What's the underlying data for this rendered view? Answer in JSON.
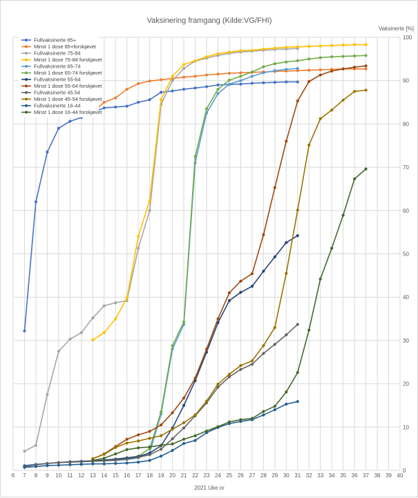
{
  "chart_data": {
    "type": "line",
    "title": "Vaksinering framgang (Kilde:VG/FHI)",
    "xlabel": "2021 Uke nr",
    "ylabel": "Vaksinerte [%]",
    "xlim": [
      6,
      40
    ],
    "ylim": [
      0,
      100
    ],
    "x_ticks": [
      6,
      7,
      8,
      9,
      10,
      11,
      12,
      13,
      14,
      15,
      16,
      17,
      18,
      19,
      20,
      21,
      22,
      23,
      24,
      25,
      26,
      27,
      28,
      29,
      30,
      31,
      32,
      33,
      34,
      35,
      36,
      37,
      38,
      39,
      40
    ],
    "y_ticks": [
      0,
      10,
      20,
      30,
      40,
      50,
      60,
      70,
      80,
      90,
      100
    ],
    "grid": true,
    "legend_position": "top-left",
    "series": [
      {
        "name": "Fullvaksinerte 85+",
        "color": "#4472c4",
        "x": [
          7,
          8,
          9,
          10,
          11,
          12,
          13,
          14,
          15,
          16,
          17,
          18,
          19,
          20,
          21,
          22,
          23,
          24,
          25,
          26,
          27,
          28,
          29,
          30,
          31
        ],
        "y": [
          32.2,
          62.0,
          73.5,
          79.0,
          80.6,
          81.5,
          82.7,
          83.7,
          83.9,
          84.1,
          85.0,
          85.6,
          87.3,
          87.6,
          88.0,
          88.3,
          88.6,
          89.0,
          89.1,
          89.2,
          89.4,
          89.5,
          89.6,
          89.7,
          89.7
        ]
      },
      {
        "name": "Minst 1 dose 85+forskjøvet",
        "color": "#ed7d31",
        "x": [
          13,
          14,
          15,
          16,
          17,
          18,
          19,
          20,
          21,
          22,
          23,
          24,
          25,
          26,
          27,
          28,
          29,
          30,
          31,
          32,
          33,
          34,
          35,
          36,
          37
        ],
        "y": [
          82.7,
          85.0,
          86.0,
          88.0,
          89.3,
          89.9,
          90.2,
          90.5,
          90.8,
          91.0,
          91.3,
          91.5,
          91.7,
          91.8,
          91.9,
          92.0,
          92.1,
          92.2,
          92.3,
          92.4,
          92.5,
          92.6,
          92.7,
          92.7,
          92.7
        ]
      },
      {
        "name": "Fullvaksinerte 75-84",
        "color": "#a5a5a5",
        "x": [
          7,
          8,
          9,
          10,
          11,
          12,
          13,
          14,
          15,
          16,
          17,
          18,
          19,
          20,
          21,
          22,
          23,
          24,
          25,
          26,
          27,
          28,
          29,
          30,
          31
        ],
        "y": [
          4.4,
          5.8,
          17.5,
          27.5,
          30.3,
          31.8,
          35.2,
          38.0,
          38.7,
          39.2,
          51.3,
          60.0,
          84.5,
          90.0,
          92.8,
          94.5,
          95.2,
          95.8,
          96.3,
          96.6,
          96.8,
          97.0,
          97.2,
          97.3,
          97.4
        ]
      },
      {
        "name": "Minst 1 dose 75-84 forskjøvet",
        "color": "#ffc000",
        "x": [
          13,
          14,
          15,
          16,
          17,
          18,
          19,
          20,
          21,
          22,
          23,
          24,
          25,
          26,
          27,
          28,
          29,
          30,
          31,
          32,
          33,
          34,
          35,
          36,
          37
        ],
        "y": [
          30.1,
          31.8,
          35.0,
          39.8,
          54.0,
          62.3,
          85.6,
          91.0,
          93.7,
          94.6,
          95.5,
          96.2,
          96.6,
          96.9,
          97.0,
          97.3,
          97.5,
          97.7,
          97.8,
          97.9,
          98.0,
          98.1,
          98.2,
          98.3,
          98.3
        ]
      },
      {
        "name": "Fullvaksinerte 65-74",
        "color": "#5b9bd5",
        "x": [
          7,
          8,
          9,
          10,
          11,
          12,
          13,
          14,
          15,
          16,
          17,
          18,
          19,
          20,
          21,
          22,
          23,
          24,
          25,
          26,
          27,
          28,
          29,
          30,
          31
        ],
        "y": [
          1.1,
          1.4,
          1.6,
          1.8,
          1.9,
          2.0,
          2.1,
          2.2,
          2.3,
          2.5,
          2.9,
          4.0,
          13.0,
          28.0,
          33.7,
          71.0,
          82.5,
          87.0,
          89.2,
          90.0,
          91.0,
          91.8,
          92.3,
          92.6,
          92.8
        ]
      },
      {
        "name": "Minst 1 dose 65-74 forskjøvet",
        "color": "#70ad47",
        "x": [
          13,
          14,
          15,
          16,
          17,
          18,
          19,
          20,
          21,
          22,
          23,
          24,
          25,
          26,
          27,
          28,
          29,
          30,
          31,
          32,
          33,
          34,
          35,
          36,
          37
        ],
        "y": [
          2.2,
          2.3,
          2.5,
          2.8,
          3.3,
          5.0,
          13.5,
          28.8,
          34.3,
          72.5,
          83.5,
          88.0,
          90.1,
          91.0,
          92.0,
          93.2,
          93.9,
          94.3,
          94.6,
          95.0,
          95.3,
          95.5,
          95.6,
          95.7,
          95.8
        ]
      },
      {
        "name": "Fullvaksinerte 55-64",
        "color": "#264478",
        "x": [
          7,
          8,
          9,
          10,
          11,
          12,
          13,
          14,
          15,
          16,
          17,
          18,
          19,
          20,
          21,
          22,
          23,
          24,
          25,
          26,
          27,
          28,
          29,
          30,
          31
        ],
        "y": [
          1.0,
          1.3,
          1.6,
          1.8,
          2.0,
          2.1,
          2.2,
          2.4,
          2.6,
          2.9,
          3.2,
          4.0,
          5.7,
          9.8,
          15.0,
          20.7,
          27.3,
          34.1,
          39.2,
          41.1,
          42.5,
          46.0,
          49.3,
          52.6,
          54.2
        ]
      },
      {
        "name": "Minst 1 dose 55-64 forskjøvet",
        "color": "#9e480e",
        "x": [
          13,
          14,
          15,
          16,
          17,
          18,
          19,
          20,
          21,
          22,
          23,
          24,
          25,
          26,
          27,
          28,
          29,
          30,
          31,
          32,
          33,
          34,
          35,
          36,
          37
        ],
        "y": [
          2.7,
          3.8,
          5.5,
          7.2,
          8.2,
          9.0,
          10.5,
          13.3,
          16.7,
          21.3,
          28.0,
          35.0,
          41.0,
          43.7,
          45.4,
          54.4,
          65.3,
          76.0,
          85.3,
          89.8,
          91.3,
          92.2,
          92.7,
          93.1,
          93.4
        ]
      },
      {
        "name": "Fullvaksinerte 45.54",
        "color": "#636363",
        "x": [
          7,
          8,
          9,
          10,
          11,
          12,
          13,
          14,
          15,
          16,
          17,
          18,
          19,
          20,
          21,
          22,
          23,
          24,
          25,
          26,
          27,
          28,
          29,
          30,
          31
        ],
        "y": [
          0.9,
          1.3,
          1.6,
          1.8,
          1.9,
          2.0,
          2.1,
          2.2,
          2.4,
          2.6,
          3.0,
          3.6,
          4.9,
          7.3,
          9.8,
          12.6,
          15.6,
          19.2,
          21.6,
          23.3,
          24.5,
          27.0,
          29.1,
          31.3,
          33.7
        ]
      },
      {
        "name": "Minst 1 dose 45-54 forskjøvet",
        "color": "#997300",
        "x": [
          13,
          14,
          15,
          16,
          17,
          18,
          19,
          20,
          21,
          22,
          23,
          24,
          25,
          26,
          27,
          28,
          29,
          30,
          31,
          32,
          33,
          34,
          35,
          36,
          37
        ],
        "y": [
          2.7,
          3.7,
          5.3,
          6.3,
          6.8,
          7.4,
          8.0,
          9.5,
          11.0,
          12.8,
          16.0,
          19.9,
          22.2,
          24.2,
          25.3,
          28.8,
          33.0,
          45.5,
          60.1,
          75.1,
          81.2,
          83.2,
          85.5,
          87.5,
          87.8
        ]
      },
      {
        "name": "Fullvaksinerte 16-44",
        "color": "#255e91",
        "x": [
          7,
          8,
          9,
          10,
          11,
          12,
          13,
          14,
          15,
          16,
          17,
          18,
          19,
          20,
          21,
          22,
          23,
          24,
          25,
          26,
          27,
          28,
          29,
          30,
          31
        ],
        "y": [
          0.7,
          0.9,
          1.1,
          1.2,
          1.3,
          1.4,
          1.5,
          1.5,
          1.6,
          1.7,
          1.9,
          2.3,
          3.3,
          4.6,
          6.2,
          6.9,
          8.7,
          9.9,
          10.8,
          11.3,
          11.7,
          12.8,
          14.0,
          15.3,
          15.9
        ]
      },
      {
        "name": "Minst 1 dose 16-44 forskjøvet",
        "color": "#43682b",
        "x": [
          13,
          14,
          15,
          16,
          17,
          18,
          19,
          20,
          21,
          22,
          23,
          24,
          25,
          26,
          27,
          28,
          29,
          30,
          31,
          32,
          33,
          34,
          35,
          36,
          37
        ],
        "y": [
          2.3,
          2.8,
          3.8,
          4.8,
          5.2,
          5.4,
          5.8,
          6.1,
          7.2,
          8.0,
          9.1,
          10.1,
          11.2,
          11.7,
          12.0,
          13.6,
          14.8,
          18.1,
          22.6,
          32.4,
          44.2,
          51.3,
          58.9,
          67.3,
          69.6
        ]
      }
    ]
  }
}
